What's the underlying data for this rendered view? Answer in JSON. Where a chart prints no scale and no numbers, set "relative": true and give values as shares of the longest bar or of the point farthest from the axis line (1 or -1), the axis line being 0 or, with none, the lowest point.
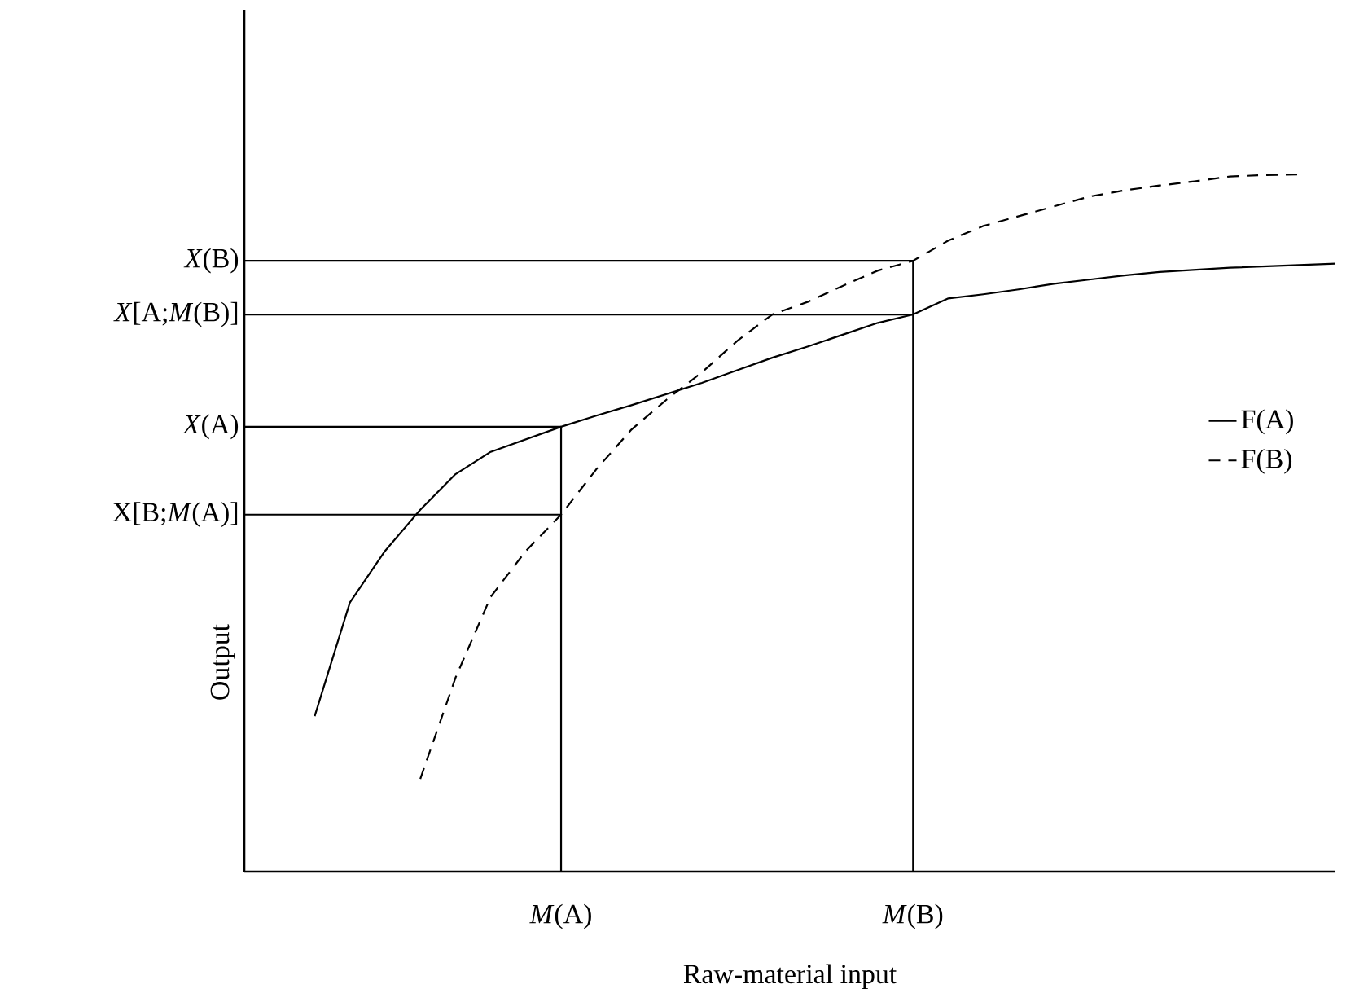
{
  "chart_data": {
    "type": "line",
    "relative": true,
    "xlabel": "Raw-material input",
    "ylabel": "Output",
    "categories": [
      null,
      null,
      null,
      null,
      null,
      null,
      null,
      null,
      null,
      "*M*(A)",
      null,
      null,
      null,
      null,
      null,
      null,
      null,
      null,
      null,
      "*M*(B)",
      null,
      null,
      null,
      null,
      null,
      null,
      null,
      null,
      null,
      null,
      null,
      null
    ],
    "legend": "right",
    "marker": "none",
    "series": [
      {
        "name": "F(A)",
        "color": "#000000",
        "line_style": "solid",
        "values": [
          null,
          null,
          0.223,
          0.386,
          0.46,
          0.519,
          0.57,
          0.602,
          0.62,
          0.638,
          0.654,
          0.669,
          0.685,
          0.701,
          0.719,
          0.737,
          0.753,
          0.77,
          0.787,
          0.799,
          0.822,
          0.828,
          0.835,
          0.843,
          0.849,
          0.855,
          0.86,
          0.863,
          0.866,
          0.868,
          0.87,
          0.872
        ]
      },
      {
        "name": "F(B)",
        "color": "#000000",
        "line_style": "dashed",
        "values": [
          null,
          null,
          null,
          null,
          null,
          0.133,
          0.278,
          0.394,
          0.46,
          0.512,
          0.577,
          0.634,
          0.677,
          0.716,
          0.761,
          0.799,
          0.817,
          0.84,
          0.862,
          0.876,
          0.905,
          0.926,
          0.94,
          0.954,
          0.968,
          0.977,
          0.984,
          0.99,
          0.997,
          0.999,
          1.0,
          null
        ]
      }
    ],
    "annotations": [
      {
        "text": "*X*(B)",
        "x": "*M*(B)",
        "y": 0.876
      },
      {
        "text": "*X*[A;*M*(B)]",
        "x": "*M*(B)",
        "y": 0.799
      },
      {
        "text": "*X*(A)",
        "x": "*M*(A)",
        "y": 0.638
      },
      {
        "text": "X[B;*M*(A)]",
        "x": "*M*(A)",
        "y": 0.512
      }
    ]
  }
}
